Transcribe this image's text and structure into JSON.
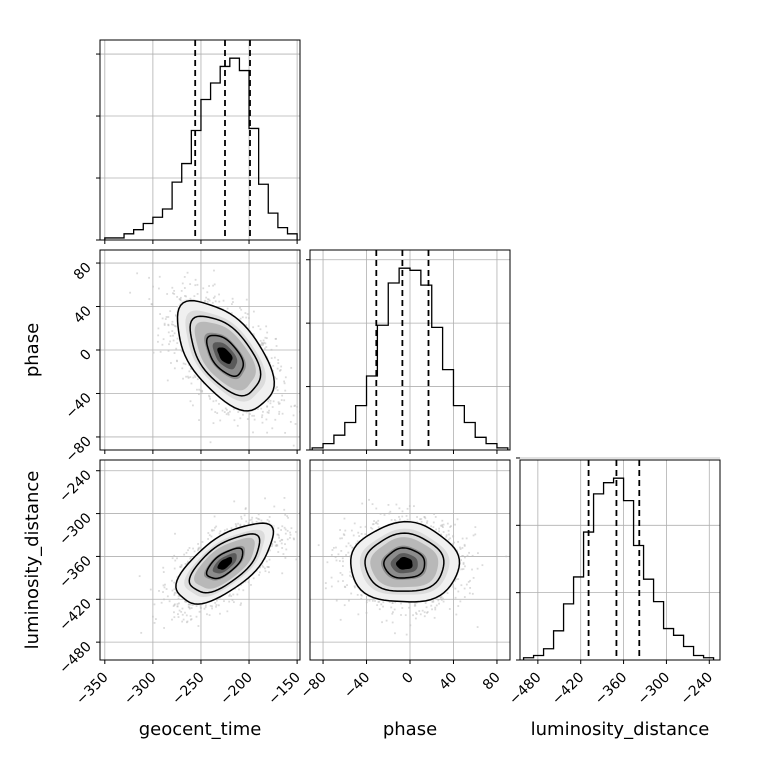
{
  "chart_data": {
    "type": "corner",
    "parameters": [
      "geocent_time",
      "phase",
      "luminosity_distance"
    ],
    "axis_labels": {
      "x": [
        "geocent_time",
        "phase",
        "luminosity_distance"
      ],
      "y": [
        "phase",
        "luminosity_distance"
      ]
    },
    "ranges": {
      "geocent_time": [
        -355,
        -147
      ],
      "phase": [
        -92,
        92
      ],
      "luminosity_distance": [
        -505,
        -225
      ]
    },
    "ticks": {
      "geocent_time": [
        -350,
        -300,
        -250,
        -200,
        -150
      ],
      "phase": [
        -80,
        -40,
        0,
        40,
        80
      ],
      "luminosity_distance": [
        -480,
        -420,
        -360,
        -300,
        -240
      ]
    },
    "tick_labels": {
      "geocent_time": [
        "−350",
        "−300",
        "−250",
        "−200",
        "−150"
      ],
      "phase": [
        "−80",
        "−40",
        "0",
        "40",
        "80"
      ],
      "luminosity_distance": [
        "−480",
        "−420",
        "−360",
        "−300",
        "−240"
      ]
    },
    "means": {
      "geocent_time": -225,
      "phase": -5,
      "luminosity_distance": -370
    },
    "stds": {
      "geocent_time": 25,
      "phase": 25,
      "luminosity_distance": 28
    },
    "correlations": [
      {
        "pair": [
          "geocent_time",
          "phase"
        ],
        "rho": -0.55
      },
      {
        "pair": [
          "geocent_time",
          "luminosity_distance"
        ],
        "rho": 0.65
      },
      {
        "pair": [
          "phase",
          "luminosity_distance"
        ],
        "rho": 0.0
      }
    ],
    "histograms": [
      {
        "parameter": "geocent_time",
        "bin_edges": [
          -350,
          -340,
          -330,
          -320,
          -310,
          -300,
          -290,
          -280,
          -270,
          -260,
          -250,
          -240,
          -230,
          -220,
          -210,
          -200,
          -190,
          -180,
          -170,
          -160,
          -150
        ],
        "relative_heights": [
          0.01,
          0.01,
          0.03,
          0.05,
          0.08,
          0.11,
          0.15,
          0.28,
          0.37,
          0.53,
          0.68,
          0.76,
          0.84,
          0.88,
          0.82,
          0.54,
          0.27,
          0.13,
          0.06,
          0.03
        ]
      },
      {
        "parameter": "phase",
        "bin_edges": [
          -90,
          -80,
          -70,
          -60,
          -50,
          -40,
          -30,
          -20,
          -10,
          0,
          10,
          20,
          30,
          40,
          50,
          60,
          70,
          80,
          90
        ],
        "relative_heights": [
          0.01,
          0.03,
          0.07,
          0.13,
          0.21,
          0.35,
          0.59,
          0.79,
          0.86,
          0.85,
          0.78,
          0.58,
          0.38,
          0.21,
          0.13,
          0.06,
          0.03,
          0.01
        ]
      },
      {
        "parameter": "luminosity_distance",
        "bin_edges": [
          -500,
          -486,
          -472,
          -458,
          -444,
          -430,
          -416,
          -402,
          -388,
          -374,
          -360,
          -346,
          -332,
          -318,
          -304,
          -290,
          -276,
          -262,
          -248,
          -234
        ],
        "relative_heights": [
          0.01,
          0.02,
          0.05,
          0.13,
          0.25,
          0.37,
          0.57,
          0.74,
          0.79,
          0.81,
          0.71,
          0.51,
          0.36,
          0.26,
          0.14,
          0.11,
          0.06,
          0.02,
          0.01
        ]
      }
    ],
    "quantile_lines": {
      "geocent_time": [
        -256,
        -225,
        -199
      ],
      "phase": [
        -31,
        -7,
        17
      ],
      "luminosity_distance": [
        -409,
        -370,
        -338
      ]
    },
    "grid": true,
    "line_style": {
      "histogram": "step",
      "quantiles": "dashed",
      "color": "#000000",
      "points_color": "#bdbdbd"
    }
  }
}
